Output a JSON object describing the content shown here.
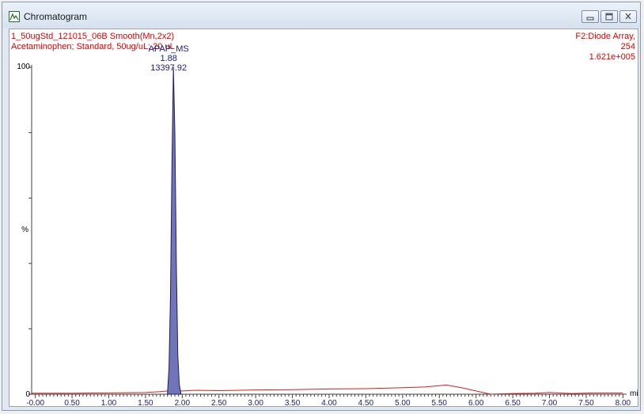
{
  "window": {
    "title": "Chromatogram",
    "icon": "chromatogram-icon",
    "controls": [
      "minimize-icon",
      "maximize-icon",
      "close-icon"
    ]
  },
  "header": {
    "line1": "1_50ugStd_121015_06B Smooth(Mn,2x2)",
    "line2": "Acetaminophen; Standard, 50ug/uL; 20 uL",
    "channel": "F2:Diode Array,",
    "wavelength": "254",
    "max_intensity": "1.621e+005"
  },
  "colors": {
    "header_text": "#e00000",
    "peak_fill": "#6f75b8",
    "peak_label": "#1a1a7a",
    "baseline": "#d02020"
  },
  "chart_data": {
    "type": "line",
    "xlabel": "min",
    "ylabel": "%",
    "xlim": [
      -0.05,
      8.05
    ],
    "ylim": [
      0,
      100
    ],
    "x_ticks": [
      "-0.00",
      "0.50",
      "1.00",
      "1.50",
      "2.00",
      "2.50",
      "3.00",
      "3.50",
      "4.00",
      "4.50",
      "5.00",
      "5.50",
      "6.00",
      "6.50",
      "7.00",
      "7.50",
      "8.00"
    ],
    "y_ticks": [
      "0",
      "100"
    ],
    "peak": {
      "name": "APAP_MS",
      "rt": "1.88",
      "area": "13397.92",
      "x": [
        1.8,
        1.82,
        1.84,
        1.86,
        1.88,
        1.9,
        1.92,
        1.94,
        1.96,
        1.98
      ],
      "y": [
        0.5,
        8,
        30,
        70,
        100,
        80,
        40,
        12,
        3,
        0.5
      ]
    },
    "series": [
      {
        "x": [
          -0.05,
          0.5,
          1.0,
          1.5,
          1.7,
          1.8,
          2.0,
          2.2,
          2.5,
          3.0,
          3.5,
          4.0,
          4.5,
          5.0,
          5.3,
          5.6,
          5.8,
          6.0,
          6.2,
          6.5,
          6.8,
          7.0,
          7.3,
          7.6,
          8.0
        ],
        "y": [
          0.3,
          0.3,
          0.4,
          0.5,
          0.8,
          1.0,
          1.0,
          1.2,
          1.1,
          1.3,
          1.4,
          1.6,
          1.7,
          2.0,
          2.2,
          2.8,
          2.0,
          1.0,
          0.0,
          0.2,
          0.3,
          0.5,
          0.2,
          0.4,
          0.4
        ]
      }
    ]
  }
}
